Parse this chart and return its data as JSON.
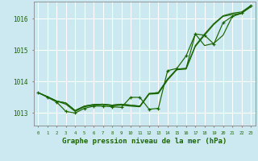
{
  "xlabel": "Graphe pression niveau de la mer (hPa)",
  "bg_color": "#cce8f0",
  "grid_color": "#ffffff",
  "line_color": "#1a6600",
  "ylim": [
    1012.6,
    1016.55
  ],
  "xlim": [
    -0.5,
    23.5
  ],
  "yticks": [
    1013,
    1014,
    1015,
    1016
  ],
  "xticks": [
    0,
    1,
    2,
    3,
    4,
    5,
    6,
    7,
    8,
    9,
    10,
    11,
    12,
    13,
    14,
    15,
    16,
    17,
    18,
    19,
    20,
    21,
    22,
    23
  ],
  "hours": [
    0,
    1,
    2,
    3,
    4,
    5,
    6,
    7,
    8,
    9,
    10,
    11,
    12,
    13,
    14,
    15,
    16,
    17,
    18,
    19,
    20,
    21,
    22,
    23
  ],
  "line1": [
    1013.65,
    1013.52,
    1013.38,
    1013.32,
    1013.08,
    1013.22,
    1013.27,
    1013.28,
    1013.25,
    1013.28,
    1013.25,
    1013.22,
    1013.62,
    1013.65,
    1014.08,
    1014.4,
    1014.42,
    1015.15,
    1015.52,
    1015.85,
    1016.1,
    1016.18,
    1016.22,
    1016.42
  ],
  "line2": [
    1013.65,
    1013.52,
    1013.38,
    1013.32,
    1013.08,
    1013.22,
    1013.27,
    1013.28,
    1013.25,
    1013.28,
    1013.25,
    1013.22,
    1013.62,
    1013.65,
    1014.08,
    1014.4,
    1014.42,
    1015.52,
    1015.15,
    1015.22,
    1015.48,
    1016.08,
    1016.18,
    1016.42
  ],
  "line3": [
    1013.65,
    1013.52,
    1013.38,
    1013.28,
    1013.05,
    1013.2,
    1013.25,
    1013.27,
    1013.23,
    1013.25,
    1013.22,
    1013.2,
    1013.6,
    1013.62,
    1014.05,
    1014.38,
    1014.4,
    1015.12,
    1015.48,
    1015.82,
    1016.08,
    1016.14,
    1016.18,
    1016.38
  ],
  "line_marked": [
    1013.65,
    1013.5,
    1013.35,
    1013.05,
    1013.0,
    1013.15,
    1013.22,
    1013.22,
    1013.2,
    1013.18,
    1013.5,
    1013.5,
    1013.12,
    1013.15,
    1014.35,
    1014.42,
    1014.82,
    1015.52,
    1015.48,
    1015.2,
    1015.88,
    1016.08,
    1016.18,
    1016.42
  ]
}
